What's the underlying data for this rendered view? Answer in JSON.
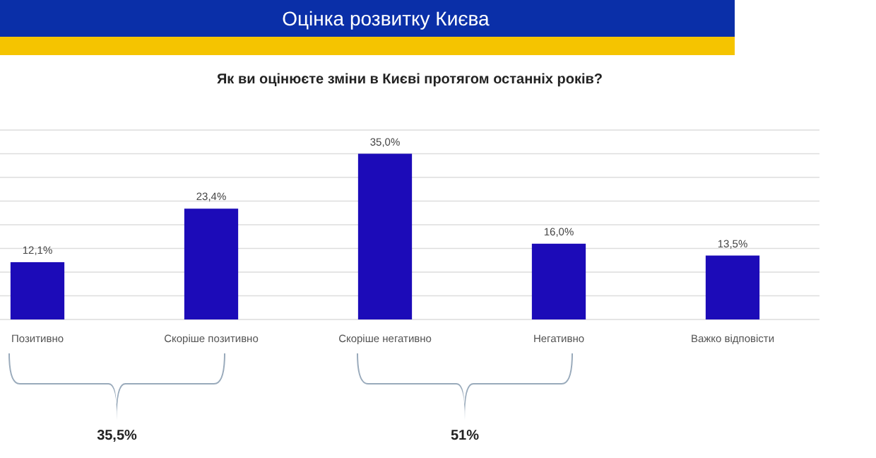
{
  "chart_data": {
    "type": "bar",
    "title": "Оцінка розвитку Києва",
    "subtitle": "Як ви оцінюєте зміни в Києві протягом останніх років?",
    "categories": [
      "Позитивно",
      "Скоріше позитивно",
      "Скоріше негативно",
      "Негативно",
      "Важко відповісти"
    ],
    "values": [
      12.1,
      23.4,
      35.0,
      16.0,
      13.5
    ],
    "value_labels": [
      "12,1%",
      "23,4%",
      "35,0%",
      "16,0%",
      "13,5%"
    ],
    "color": "#1c0bb8",
    "ylim": [
      0,
      40
    ],
    "yticks": [
      {
        "value": 0,
        "label": null
      },
      {
        "value": 5,
        "label": null
      },
      {
        "value": 10,
        "label": null
      },
      {
        "value": 15,
        "label": null
      },
      {
        "value": 20,
        "label": null
      },
      {
        "value": 25,
        "label": null
      },
      {
        "value": 30,
        "label": null
      },
      {
        "value": 35,
        "label": null
      },
      {
        "value": 40,
        "label": null
      }
    ],
    "tick_labels": "x",
    "grid": "y",
    "annotations": [
      "35,5%",
      "51%"
    ]
  }
}
